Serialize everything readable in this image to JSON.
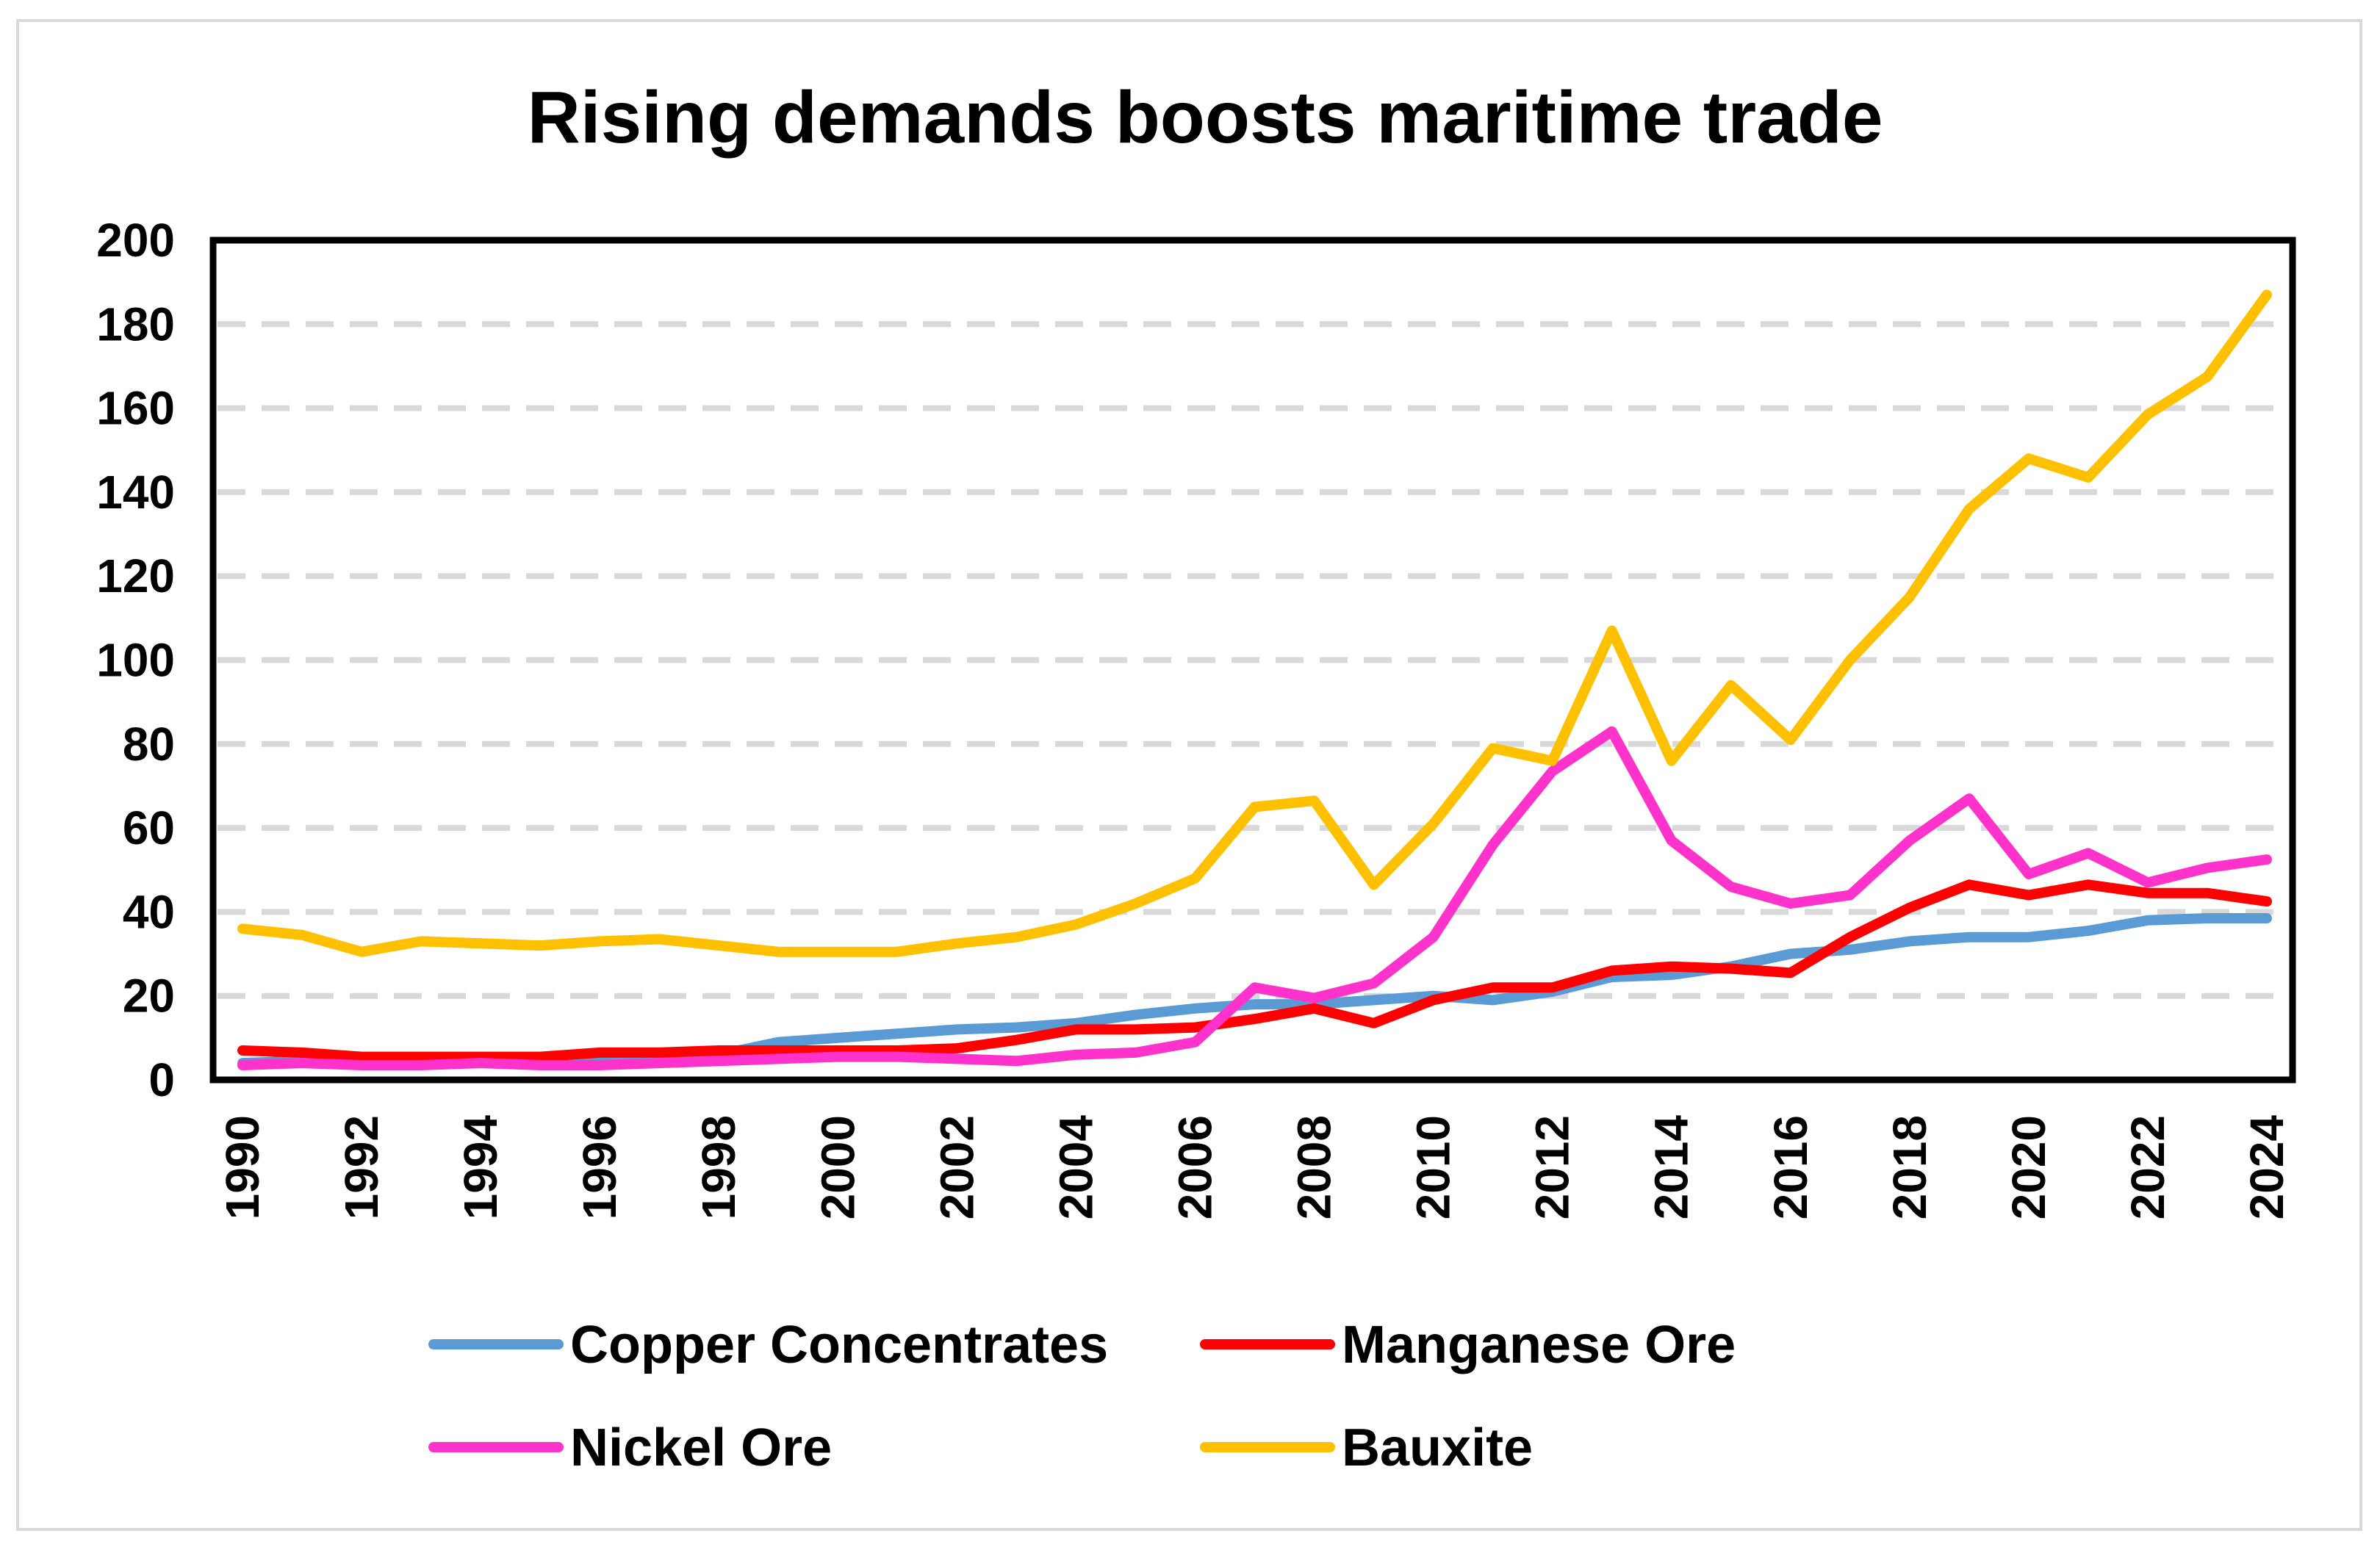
{
  "chart_data": {
    "type": "line",
    "title": "Rising demands boosts maritime trade",
    "xlabel": "",
    "ylabel": "",
    "ylim": [
      0,
      200
    ],
    "yticks": [
      "0",
      "20",
      "40",
      "60",
      "80",
      "100",
      "120",
      "140",
      "160",
      "180",
      "200"
    ],
    "x": [
      1990,
      1991,
      1992,
      1993,
      1994,
      1995,
      1996,
      1997,
      1998,
      1999,
      2000,
      2001,
      2002,
      2003,
      2004,
      2005,
      2006,
      2007,
      2008,
      2009,
      2010,
      2011,
      2012,
      2013,
      2014,
      2015,
      2016,
      2017,
      2018,
      2019,
      2020,
      2021,
      2022,
      2023,
      2024
    ],
    "xtick_labels": [
      "1990",
      "1992",
      "1994",
      "1996",
      "1998",
      "2000",
      "2002",
      "2004",
      "2006",
      "2008",
      "2010",
      "2012",
      "2014",
      "2016",
      "2018",
      "2020",
      "2022",
      "2024"
    ],
    "grid": true,
    "legend_position": "bottom",
    "series": [
      {
        "name": "Copper Concentrates",
        "color": "#5b9bd5",
        "values": [
          4,
          4.5,
          4,
          4,
          4.5,
          4.5,
          4.5,
          5,
          6,
          9,
          10,
          11,
          12,
          12.5,
          13.5,
          15.5,
          17,
          18,
          18,
          19,
          20,
          19,
          21,
          24.5,
          25,
          27,
          30,
          31,
          33,
          34,
          34,
          35.5,
          38,
          38.5,
          38.5
        ]
      },
      {
        "name": "Manganese Ore",
        "color": "#ff0000",
        "values": [
          7,
          6.5,
          5.5,
          5.5,
          5.5,
          5.5,
          6.5,
          6.5,
          7,
          7,
          7,
          7,
          7.5,
          9.5,
          12,
          12,
          12.5,
          14.5,
          17,
          13.5,
          19,
          22,
          22,
          26,
          27,
          26.5,
          25.5,
          34,
          41,
          46.5,
          44,
          46.5,
          44.5,
          44.5,
          42.5
        ]
      },
      {
        "name": "Nickel Ore",
        "color": "#ff33cc",
        "values": [
          3.5,
          4,
          3.5,
          3.5,
          4,
          3.5,
          3.5,
          4,
          4.5,
          5,
          5.5,
          5.5,
          5,
          4.5,
          6,
          6.5,
          9,
          22,
          19.5,
          23,
          34,
          56,
          73.5,
          83,
          57,
          46,
          42,
          44,
          57,
          67,
          49,
          54,
          47,
          50.5,
          52.5
        ]
      },
      {
        "name": "Bauxite",
        "color": "#ffc000",
        "values": [
          36,
          34.5,
          30.5,
          33,
          32.5,
          32,
          33,
          33.5,
          32,
          30.5,
          30.5,
          30.5,
          32.5,
          34,
          37,
          42,
          48,
          65,
          66.5,
          46.5,
          61,
          79,
          76,
          107,
          76,
          94,
          81,
          100,
          115,
          136,
          148,
          143.5,
          158.5,
          167.5,
          187
        ]
      }
    ]
  }
}
